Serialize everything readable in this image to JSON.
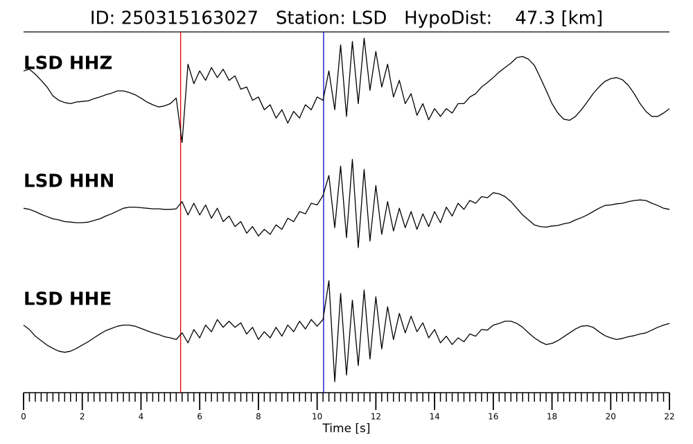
{
  "chart_data": {
    "type": "seismogram",
    "title": "ID: 250315163027   Station: LSD   HypoDist:    47.3 [km]",
    "x_label": "Time [s]",
    "xlim": [
      0,
      22
    ],
    "xticks": [
      0,
      2,
      4,
      6,
      8,
      10,
      12,
      14,
      16,
      18,
      20,
      22
    ],
    "xminorticks": [
      0,
      0.2,
      0.4,
      0.6,
      0.8,
      1,
      1.2,
      1.4,
      1.6,
      1.8,
      2,
      2.2,
      2.4,
      2.6,
      2.8,
      3,
      3.2,
      3.4,
      3.6,
      3.8,
      4,
      4.2,
      4.4,
      4.6,
      4.8,
      5,
      5.2,
      5.4,
      5.6,
      5.8,
      6,
      6.2,
      6.4,
      6.6,
      6.8,
      7,
      7.2,
      7.4,
      7.6,
      7.8,
      8,
      8.2,
      8.4,
      8.6,
      8.8,
      9,
      9.2,
      9.4,
      9.6,
      9.8,
      10,
      10.2,
      10.4,
      10.6,
      10.8,
      11,
      11.2,
      11.4,
      11.6,
      11.8,
      12,
      12.2,
      12.4,
      12.6,
      12.8,
      13,
      13.2,
      13.4,
      13.6,
      13.8,
      14,
      14.2,
      14.4,
      14.6,
      14.8,
      15,
      15.2,
      15.4,
      15.6,
      15.8,
      16,
      16.2,
      16.4,
      16.6,
      16.8,
      17,
      17.2,
      17.4,
      17.6,
      17.8,
      18,
      18.2,
      18.4,
      18.6,
      18.8,
      19,
      19.2,
      19.4,
      19.6,
      19.8,
      20,
      20.2,
      20.4,
      20.6,
      20.8,
      21,
      21.2,
      21.4,
      21.6,
      21.8,
      22
    ],
    "ylim": [
      -1,
      1
    ],
    "name_color": "#4a9a00",
    "picks": [
      {
        "x": 5.35,
        "color": "#e00000"
      },
      {
        "x": 10.22,
        "color": "#0000cc"
      }
    ],
    "x": [
      0,
      0.2,
      0.4,
      0.6,
      0.8,
      1,
      1.2,
      1.4,
      1.6,
      1.8,
      2,
      2.2,
      2.4,
      2.6,
      2.8,
      3,
      3.2,
      3.4,
      3.6,
      3.8,
      4,
      4.2,
      4.4,
      4.6,
      4.8,
      5,
      5.2,
      5.4,
      5.6,
      5.8,
      6,
      6.2,
      6.4,
      6.6,
      6.8,
      7,
      7.2,
      7.4,
      7.6,
      7.8,
      8,
      8.2,
      8.4,
      8.6,
      8.8,
      9,
      9.2,
      9.4,
      9.6,
      9.8,
      10,
      10.2,
      10.4,
      10.6,
      10.8,
      11,
      11.2,
      11.4,
      11.6,
      11.8,
      12,
      12.2,
      12.4,
      12.6,
      12.8,
      13,
      13.2,
      13.4,
      13.6,
      13.8,
      14,
      14.2,
      14.4,
      14.6,
      14.8,
      15,
      15.2,
      15.4,
      15.6,
      15.8,
      16,
      16.2,
      16.4,
      16.6,
      16.8,
      17,
      17.2,
      17.4,
      17.6,
      17.8,
      18,
      18.2,
      18.4,
      18.6,
      18.8,
      19,
      19.2,
      19.4,
      19.6,
      19.8,
      20,
      20.2,
      20.4,
      20.6,
      20.8,
      21,
      21.2,
      21.4,
      21.6,
      21.8,
      22
    ],
    "series": [
      {
        "name": "LSD HHZ",
        "color": "#000000",
        "values": [
          0.41,
          0.44,
          0.35,
          0.24,
          0.12,
          -0.04,
          -0.12,
          -0.16,
          -0.18,
          -0.15,
          -0.14,
          -0.13,
          -0.09,
          -0.06,
          -0.02,
          0.01,
          0.05,
          0.05,
          0.02,
          -0.02,
          -0.08,
          -0.15,
          -0.2,
          -0.24,
          -0.22,
          -0.18,
          -0.08,
          -0.88,
          0.53,
          0.18,
          0.41,
          0.24,
          0.47,
          0.29,
          0.44,
          0.24,
          0.32,
          0.08,
          0.12,
          -0.12,
          -0.06,
          -0.29,
          -0.2,
          -0.44,
          -0.29,
          -0.53,
          -0.32,
          -0.44,
          -0.2,
          -0.29,
          -0.06,
          -0.12,
          0.41,
          -0.29,
          0.88,
          -0.41,
          0.94,
          -0.18,
          1.0,
          0.06,
          0.76,
          0.12,
          0.53,
          -0.06,
          0.24,
          -0.18,
          0,
          -0.39,
          -0.18,
          -0.47,
          -0.27,
          -0.41,
          -0.27,
          -0.35,
          -0.18,
          -0.18,
          -0.06,
          0,
          0.12,
          0.2,
          0.29,
          0.39,
          0.47,
          0.55,
          0.65,
          0.67,
          0.62,
          0.51,
          0.29,
          0.06,
          -0.18,
          -0.35,
          -0.46,
          -0.48,
          -0.41,
          -0.29,
          -0.15,
          0,
          0.12,
          0.22,
          0.27,
          0.29,
          0.25,
          0.15,
          0,
          -0.18,
          -0.32,
          -0.41,
          -0.41,
          -0.35,
          -0.27
        ]
      },
      {
        "name": "LSD HHN",
        "color": "#000000",
        "values": [
          0.06,
          0.04,
          0,
          -0.05,
          -0.09,
          -0.13,
          -0.15,
          -0.18,
          -0.19,
          -0.2,
          -0.2,
          -0.19,
          -0.16,
          -0.13,
          -0.08,
          -0.04,
          0.01,
          0.06,
          0.08,
          0.08,
          0.07,
          0.06,
          0.05,
          0.05,
          0.04,
          0.04,
          0.05,
          0.18,
          -0.06,
          0.15,
          -0.06,
          0.12,
          -0.12,
          0.06,
          -0.18,
          -0.08,
          -0.27,
          -0.18,
          -0.39,
          -0.27,
          -0.44,
          -0.32,
          -0.41,
          -0.24,
          -0.32,
          -0.12,
          -0.18,
          0,
          -0.04,
          0.15,
          0.12,
          0.29,
          0.65,
          -0.29,
          0.82,
          -0.47,
          0.94,
          -0.65,
          0.76,
          -0.53,
          0.47,
          -0.41,
          0.18,
          -0.35,
          0.06,
          -0.29,
          0,
          -0.32,
          -0.04,
          -0.27,
          0,
          -0.2,
          0.08,
          -0.08,
          0.15,
          0.04,
          0.2,
          0.15,
          0.27,
          0.25,
          0.34,
          0.32,
          0.27,
          0.18,
          0.06,
          -0.06,
          -0.15,
          -0.24,
          -0.27,
          -0.28,
          -0.26,
          -0.25,
          -0.22,
          -0.2,
          -0.15,
          -0.11,
          -0.06,
          0,
          0.06,
          0.11,
          0.12,
          0.14,
          0.15,
          0.18,
          0.2,
          0.21,
          0.2,
          0.15,
          0.11,
          0.06,
          0.04
        ]
      },
      {
        "name": "LSD HHE",
        "color": "#000000",
        "values": [
          0.08,
          0,
          -0.12,
          -0.2,
          -0.28,
          -0.34,
          -0.39,
          -0.41,
          -0.39,
          -0.34,
          -0.28,
          -0.22,
          -0.15,
          -0.08,
          -0.02,
          0.02,
          0.06,
          0.08,
          0.08,
          0.06,
          0.02,
          -0.02,
          -0.06,
          -0.09,
          -0.13,
          -0.15,
          -0.18,
          -0.06,
          -0.24,
          0,
          -0.15,
          0.08,
          -0.04,
          0.18,
          0.04,
          0.15,
          0.04,
          0.12,
          -0.08,
          0.04,
          -0.18,
          -0.04,
          -0.15,
          0.04,
          -0.12,
          0.08,
          -0.04,
          0.15,
          0.01,
          0.18,
          0.06,
          0.18,
          0.88,
          -0.94,
          0.65,
          -0.82,
          0.53,
          -0.65,
          0.71,
          -0.53,
          0.59,
          -0.35,
          0.41,
          -0.18,
          0.29,
          -0.06,
          0.24,
          -0.04,
          0.12,
          -0.15,
          0,
          -0.24,
          -0.12,
          -0.27,
          -0.15,
          -0.22,
          -0.08,
          -0.12,
          0,
          -0.01,
          0.08,
          0.11,
          0.15,
          0.15,
          0.11,
          0.04,
          -0.06,
          -0.15,
          -0.22,
          -0.27,
          -0.25,
          -0.2,
          -0.13,
          -0.06,
          0.01,
          0.06,
          0.07,
          0.04,
          -0.04,
          -0.11,
          -0.15,
          -0.18,
          -0.16,
          -0.13,
          -0.11,
          -0.08,
          -0.06,
          -0.01,
          0.04,
          0.08,
          0.11
        ]
      }
    ]
  }
}
